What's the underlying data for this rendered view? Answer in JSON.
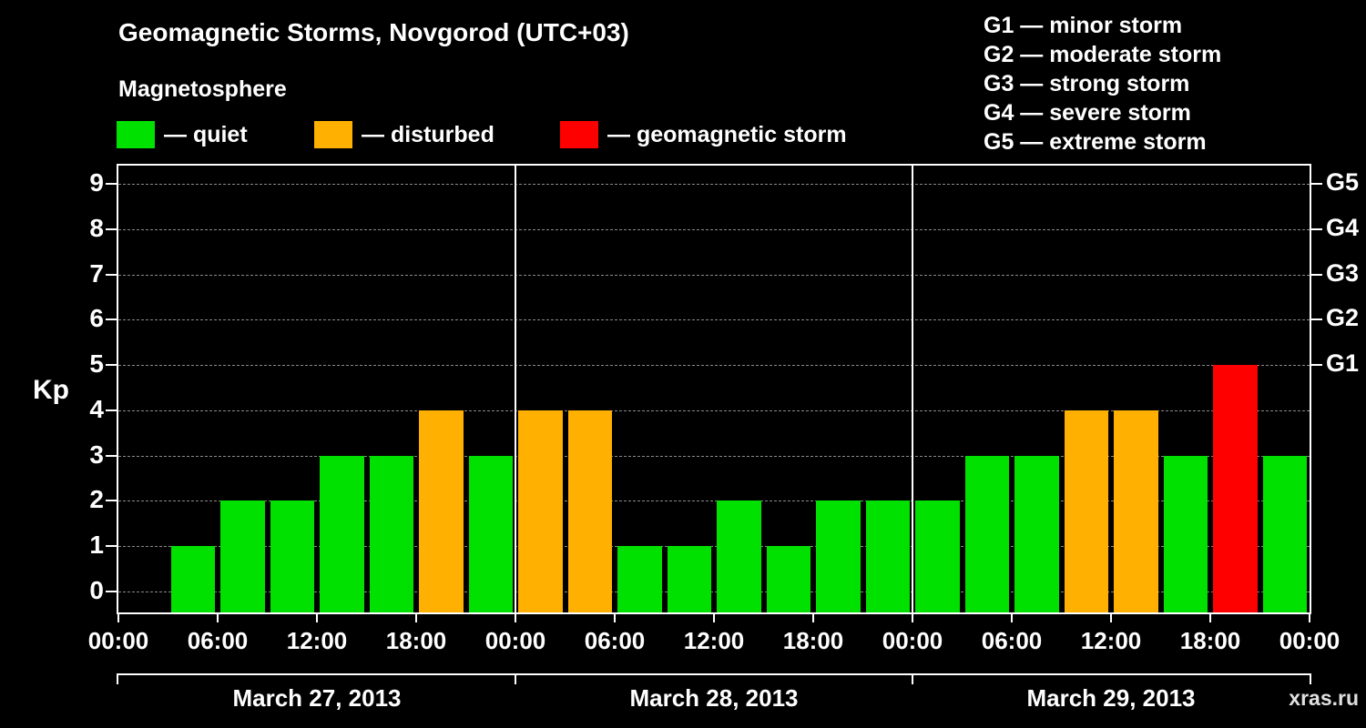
{
  "header": {
    "title": "Geomagnetic Storms, Novgorod (UTC+03)",
    "subtitle": "Magnetosphere"
  },
  "legend": {
    "items": [
      {
        "color_key": "quiet",
        "label": "— quiet"
      },
      {
        "color_key": "disturbed",
        "label": "— disturbed"
      },
      {
        "color_key": "storm",
        "label": "— geomagnetic storm"
      }
    ]
  },
  "storm_scale": {
    "lines": [
      "G1 — minor storm",
      "G2 — moderate storm",
      "G3 — strong storm",
      "G4 — severe storm",
      "G5 — extreme storm"
    ]
  },
  "axes": {
    "ylabel": "Kp",
    "y_ticks": [
      "9",
      "8",
      "7",
      "6",
      "5",
      "4",
      "3",
      "2",
      "1",
      "0"
    ],
    "right_ticks": [
      {
        "label": "G5",
        "kp": 9
      },
      {
        "label": "G4",
        "kp": 8
      },
      {
        "label": "G3",
        "kp": 7
      },
      {
        "label": "G2",
        "kp": 6
      },
      {
        "label": "G1",
        "kp": 5
      }
    ],
    "x_tick_labels": [
      "00:00",
      "06:00",
      "12:00",
      "18:00",
      "00:00",
      "06:00",
      "12:00",
      "18:00",
      "00:00",
      "06:00",
      "12:00",
      "18:00",
      "00:00"
    ]
  },
  "chart_data": {
    "type": "bar",
    "title": "Geomagnetic Storms, Novgorod (UTC+03)",
    "ylabel": "Kp",
    "ylim": [
      0,
      9
    ],
    "bar_interval_hours": 3,
    "days": [
      {
        "date": "March 27, 2013",
        "values": [
          0,
          1,
          2,
          2,
          3,
          3,
          4,
          3
        ]
      },
      {
        "date": "March 28, 2013",
        "values": [
          4,
          4,
          1,
          1,
          2,
          1,
          2,
          2
        ]
      },
      {
        "date": "March 29, 2013",
        "values": [
          2,
          3,
          3,
          4,
          4,
          3,
          5,
          3
        ]
      }
    ],
    "colors": {
      "quiet": "#00e100",
      "disturbed": "#ffb000",
      "storm": "#ff0000"
    },
    "thresholds": {
      "disturbed": 4,
      "storm": 5
    },
    "grid": "dashed-horizontal",
    "legend_position": "top"
  },
  "footer": {
    "watermark": "xras.ru"
  }
}
